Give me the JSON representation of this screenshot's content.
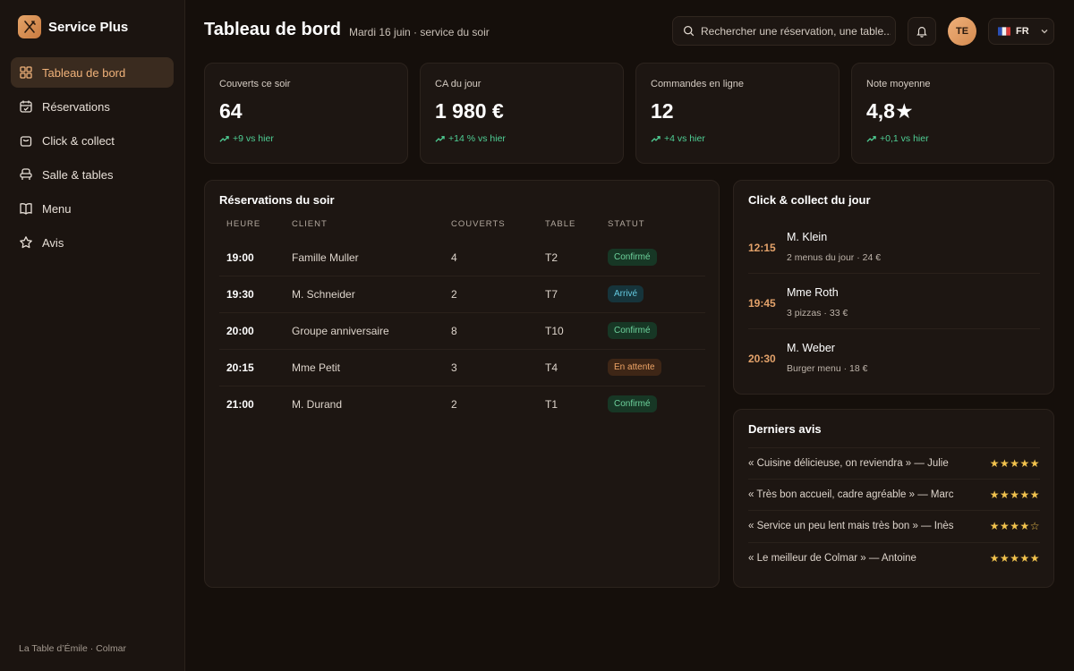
{
  "app": {
    "name": "Service Plus",
    "footer": "La Table d’Émile · Colmar"
  },
  "sidebar": {
    "items": [
      {
        "label": "Tableau de bord",
        "icon": "dashboard-icon",
        "active": true
      },
      {
        "label": "Réservations",
        "icon": "calendar-icon"
      },
      {
        "label": "Click & collect",
        "icon": "bag-icon"
      },
      {
        "label": "Salle & tables",
        "icon": "chair-icon"
      },
      {
        "label": "Menu",
        "icon": "book-icon"
      },
      {
        "label": "Avis",
        "icon": "star-icon"
      }
    ]
  },
  "header": {
    "title": "Tableau de bord",
    "subtitle": "Mardi 16 juin · service du soir",
    "search_placeholder": "Rechercher une réservation, une table...",
    "avatar": "TE",
    "lang": "FR"
  },
  "stats": [
    {
      "label": "Couverts ce soir",
      "value": "64",
      "trend": "+9 vs hier"
    },
    {
      "label": "CA du jour",
      "value": "1 980 €",
      "trend": "+14 % vs hier"
    },
    {
      "label": "Commandes en ligne",
      "value": "12",
      "trend": "+4 vs hier"
    },
    {
      "label": "Note moyenne",
      "value": "4,8★",
      "trend": "+0,1 vs hier"
    }
  ],
  "reservations": {
    "title": "Réservations du soir",
    "columns": [
      "HEURE",
      "CLIENT",
      "COUVERTS",
      "TABLE",
      "STATUT"
    ],
    "rows": [
      {
        "time": "19:00",
        "client": "Famille Muller",
        "covers": "4",
        "table": "T2",
        "status": "Confirmé"
      },
      {
        "time": "19:30",
        "client": "M. Schneider",
        "covers": "2",
        "table": "T7",
        "status": "Arrivé"
      },
      {
        "time": "20:00",
        "client": "Groupe anniversaire",
        "covers": "8",
        "table": "T10",
        "status": "Confirmé"
      },
      {
        "time": "20:15",
        "client": "Mme Petit",
        "covers": "3",
        "table": "T4",
        "status": "En attente"
      },
      {
        "time": "21:00",
        "client": "M. Durand",
        "covers": "2",
        "table": "T1",
        "status": "Confirmé"
      }
    ]
  },
  "click_collect": {
    "title": "Click & collect du jour",
    "items": [
      {
        "time": "12:15",
        "name": "M. Klein",
        "detail": "2 menus du jour · 24 €"
      },
      {
        "time": "19:45",
        "name": "Mme Roth",
        "detail": "3 pizzas · 33 €"
      },
      {
        "time": "20:30",
        "name": "M. Weber",
        "detail": "Burger menu · 18 €"
      }
    ]
  },
  "reviews": {
    "title": "Derniers avis",
    "items": [
      {
        "text": "« Cuisine délicieuse, on reviendra » — Julie",
        "stars": "★★★★★"
      },
      {
        "text": "« Très bon accueil, cadre agréable » — Marc",
        "stars": "★★★★★"
      },
      {
        "text": "« Service un peu lent mais très bon » — Inès",
        "stars": "★★★★☆"
      },
      {
        "text": "« Le meilleur de Colmar » — Antoine",
        "stars": "★★★★★"
      }
    ]
  },
  "colors": {
    "accent": "#e3a26a",
    "success": "#4fcf95",
    "background": "#150f0b"
  }
}
